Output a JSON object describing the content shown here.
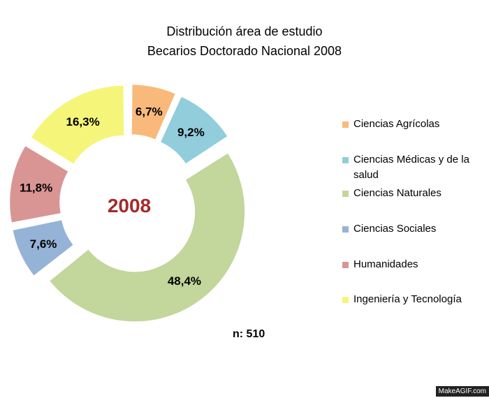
{
  "chart_data": {
    "type": "pie",
    "title": "Distribución área de estudio",
    "subtitle": "Becarios Doctorado Nacional 2008",
    "center_label": "2008",
    "slices": [
      {
        "name": "Ciencias Agrícolas",
        "value": 6.7,
        "label": "6,7%",
        "color": "#F9B97B"
      },
      {
        "name": "Ciencias Médicas y de la salud",
        "value": 9.2,
        "label": "9,2%",
        "color": "#92CDDC"
      },
      {
        "name": "Ciencias Naturales",
        "value": 48.4,
        "label": "48,4%",
        "color": "#C3D69B"
      },
      {
        "name": "Ciencias Sociales",
        "value": 7.6,
        "label": "7,6%",
        "color": "#95B3D7"
      },
      {
        "name": "Humanidades",
        "value": 11.8,
        "label": "11,8%",
        "color": "#D99594"
      },
      {
        "name": "Ingeniería y Tecnología",
        "value": 16.3,
        "label": "16,3%",
        "color": "#F5F57A"
      }
    ],
    "legend_position": "right",
    "sample_note": "n: 510"
  },
  "watermark": "MakeAGIF.com",
  "colors": {
    "center_label": "#A52A2A"
  }
}
